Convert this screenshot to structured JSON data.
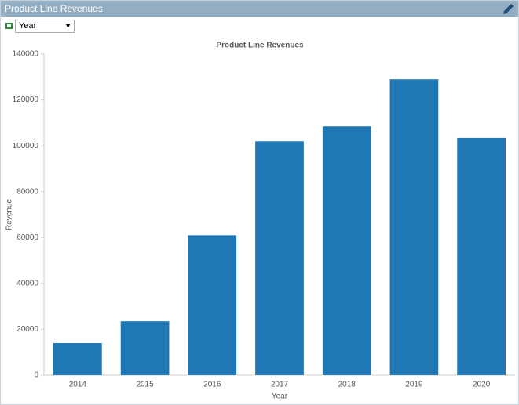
{
  "panel": {
    "title": "Product Line Revenues",
    "selector": "Year"
  },
  "chart_data": {
    "type": "bar",
    "title": "Product Line Revenues",
    "x_label": "Year",
    "y_label": "Revenue",
    "categories": [
      "2014",
      "2015",
      "2016",
      "2017",
      "2018",
      "2019",
      "2020"
    ],
    "values": [
      14000,
      23500,
      61000,
      102000,
      108500,
      129000,
      103500
    ],
    "color": "#1f77b4",
    "ylim": [
      0,
      140000
    ],
    "yticks": [
      0,
      20000,
      40000,
      60000,
      80000,
      100000,
      120000,
      140000
    ],
    "grid": false
  }
}
